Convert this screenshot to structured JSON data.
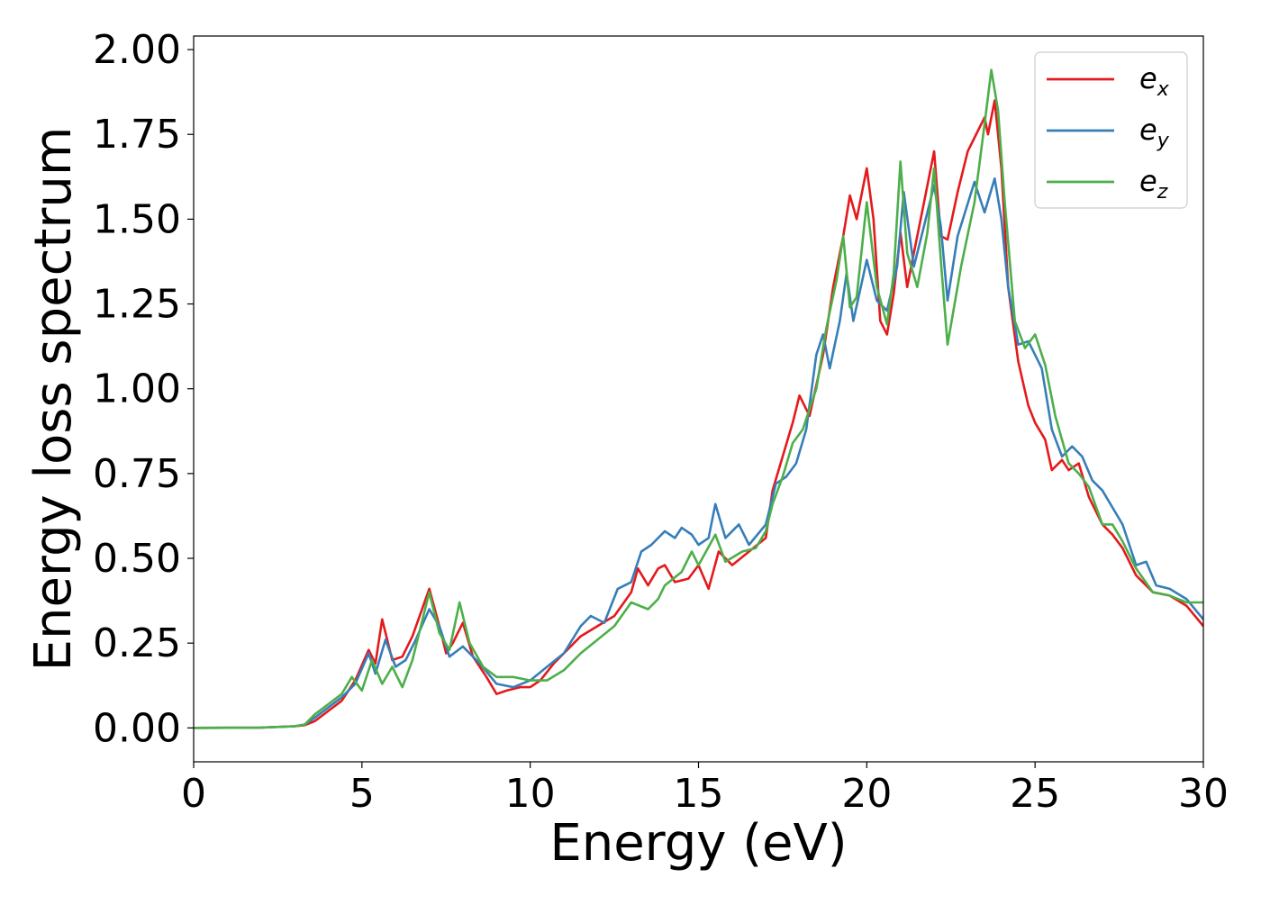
{
  "chart_data": {
    "type": "line",
    "xlabel": "Energy (eV)",
    "ylabel": "Energy loss spectrum",
    "xlim": [
      0,
      30
    ],
    "ylim": [
      -0.1,
      2.04
    ],
    "x_ticks": [
      0,
      5,
      10,
      15,
      20,
      25,
      30
    ],
    "x_tick_labels": [
      "0",
      "5",
      "10",
      "15",
      "20",
      "25",
      "30"
    ],
    "y_ticks": [
      0,
      0.25,
      0.5,
      0.75,
      1.0,
      1.25,
      1.5,
      1.75,
      2.0
    ],
    "y_tick_labels": [
      "0.00",
      "0.25",
      "0.50",
      "0.75",
      "1.00",
      "1.25",
      "1.50",
      "1.75",
      "2.00"
    ],
    "grid": false,
    "legend_position": "top-right",
    "series": [
      {
        "name": "e_x",
        "legend_base": "e",
        "legend_sub": "x",
        "color": "#e41a1c",
        "points": [
          [
            0,
            0
          ],
          [
            2,
            0.001
          ],
          [
            3,
            0.005
          ],
          [
            3.3,
            0.008
          ],
          [
            3.6,
            0.02
          ],
          [
            4,
            0.05
          ],
          [
            4.4,
            0.08
          ],
          [
            4.8,
            0.14
          ],
          [
            5.2,
            0.23
          ],
          [
            5.4,
            0.19
          ],
          [
            5.6,
            0.32
          ],
          [
            5.9,
            0.2
          ],
          [
            6.2,
            0.21
          ],
          [
            6.5,
            0.27
          ],
          [
            7,
            0.41
          ],
          [
            7.3,
            0.3
          ],
          [
            7.5,
            0.22
          ],
          [
            7.7,
            0.25
          ],
          [
            8,
            0.31
          ],
          [
            8.3,
            0.21
          ],
          [
            8.7,
            0.15
          ],
          [
            9,
            0.1
          ],
          [
            9.3,
            0.11
          ],
          [
            9.7,
            0.12
          ],
          [
            10,
            0.12
          ],
          [
            10.3,
            0.14
          ],
          [
            10.7,
            0.19
          ],
          [
            11,
            0.22
          ],
          [
            11.5,
            0.27
          ],
          [
            12,
            0.3
          ],
          [
            12.5,
            0.33
          ],
          [
            13,
            0.4
          ],
          [
            13.2,
            0.47
          ],
          [
            13.5,
            0.42
          ],
          [
            13.8,
            0.47
          ],
          [
            14,
            0.48
          ],
          [
            14.3,
            0.43
          ],
          [
            14.7,
            0.44
          ],
          [
            15,
            0.48
          ],
          [
            15.3,
            0.41
          ],
          [
            15.6,
            0.52
          ],
          [
            16,
            0.48
          ],
          [
            16.5,
            0.52
          ],
          [
            17,
            0.56
          ],
          [
            17.2,
            0.7
          ],
          [
            17.5,
            0.8
          ],
          [
            17.8,
            0.9
          ],
          [
            18,
            0.98
          ],
          [
            18.3,
            0.92
          ],
          [
            18.7,
            1.1
          ],
          [
            19,
            1.3
          ],
          [
            19.3,
            1.45
          ],
          [
            19.5,
            1.57
          ],
          [
            19.7,
            1.5
          ],
          [
            20,
            1.65
          ],
          [
            20.2,
            1.5
          ],
          [
            20.4,
            1.2
          ],
          [
            20.6,
            1.16
          ],
          [
            20.8,
            1.28
          ],
          [
            21,
            1.46
          ],
          [
            21.2,
            1.3
          ],
          [
            21.4,
            1.4
          ],
          [
            21.7,
            1.55
          ],
          [
            22,
            1.7
          ],
          [
            22.2,
            1.45
          ],
          [
            22.4,
            1.44
          ],
          [
            22.7,
            1.58
          ],
          [
            23,
            1.7
          ],
          [
            23.3,
            1.76
          ],
          [
            23.5,
            1.8
          ],
          [
            23.6,
            1.75
          ],
          [
            23.8,
            1.85
          ],
          [
            24,
            1.65
          ],
          [
            24.2,
            1.3
          ],
          [
            24.5,
            1.08
          ],
          [
            24.8,
            0.95
          ],
          [
            25,
            0.9
          ],
          [
            25.3,
            0.85
          ],
          [
            25.5,
            0.76
          ],
          [
            25.8,
            0.79
          ],
          [
            26,
            0.76
          ],
          [
            26.3,
            0.78
          ],
          [
            26.6,
            0.68
          ],
          [
            27,
            0.6
          ],
          [
            27.3,
            0.57
          ],
          [
            27.6,
            0.53
          ],
          [
            28,
            0.45
          ],
          [
            28.5,
            0.4
          ],
          [
            29,
            0.39
          ],
          [
            29.5,
            0.36
          ],
          [
            30,
            0.3
          ]
        ]
      },
      {
        "name": "e_y",
        "legend_base": "e",
        "legend_sub": "y",
        "color": "#377eb8",
        "points": [
          [
            0,
            0
          ],
          [
            2,
            0.001
          ],
          [
            3,
            0.005
          ],
          [
            3.3,
            0.01
          ],
          [
            3.6,
            0.03
          ],
          [
            4,
            0.06
          ],
          [
            4.4,
            0.09
          ],
          [
            4.8,
            0.13
          ],
          [
            5.2,
            0.22
          ],
          [
            5.4,
            0.16
          ],
          [
            5.7,
            0.26
          ],
          [
            6,
            0.18
          ],
          [
            6.3,
            0.2
          ],
          [
            6.6,
            0.26
          ],
          [
            7,
            0.35
          ],
          [
            7.3,
            0.3
          ],
          [
            7.6,
            0.21
          ],
          [
            8,
            0.24
          ],
          [
            8.5,
            0.19
          ],
          [
            9,
            0.13
          ],
          [
            9.5,
            0.12
          ],
          [
            10,
            0.14
          ],
          [
            10.5,
            0.18
          ],
          [
            11,
            0.22
          ],
          [
            11.5,
            0.3
          ],
          [
            11.8,
            0.33
          ],
          [
            12.2,
            0.31
          ],
          [
            12.6,
            0.41
          ],
          [
            13,
            0.43
          ],
          [
            13.3,
            0.52
          ],
          [
            13.6,
            0.54
          ],
          [
            14,
            0.58
          ],
          [
            14.3,
            0.56
          ],
          [
            14.5,
            0.59
          ],
          [
            14.8,
            0.57
          ],
          [
            15,
            0.54
          ],
          [
            15.3,
            0.56
          ],
          [
            15.5,
            0.66
          ],
          [
            15.8,
            0.56
          ],
          [
            16.2,
            0.6
          ],
          [
            16.5,
            0.54
          ],
          [
            17,
            0.6
          ],
          [
            17.3,
            0.72
          ],
          [
            17.6,
            0.74
          ],
          [
            17.9,
            0.78
          ],
          [
            18.2,
            0.88
          ],
          [
            18.5,
            1.1
          ],
          [
            18.7,
            1.16
          ],
          [
            18.9,
            1.06
          ],
          [
            19.2,
            1.2
          ],
          [
            19.4,
            1.34
          ],
          [
            19.6,
            1.2
          ],
          [
            20,
            1.38
          ],
          [
            20.3,
            1.26
          ],
          [
            20.6,
            1.23
          ],
          [
            20.9,
            1.36
          ],
          [
            21.1,
            1.58
          ],
          [
            21.4,
            1.36
          ],
          [
            21.7,
            1.48
          ],
          [
            22,
            1.6
          ],
          [
            22.2,
            1.48
          ],
          [
            22.4,
            1.26
          ],
          [
            22.7,
            1.45
          ],
          [
            23.2,
            1.61
          ],
          [
            23.5,
            1.52
          ],
          [
            23.8,
            1.62
          ],
          [
            24,
            1.5
          ],
          [
            24.2,
            1.3
          ],
          [
            24.5,
            1.13
          ],
          [
            24.8,
            1.14
          ],
          [
            25.2,
            1.06
          ],
          [
            25.5,
            0.88
          ],
          [
            25.8,
            0.8
          ],
          [
            26.1,
            0.83
          ],
          [
            26.4,
            0.8
          ],
          [
            26.7,
            0.73
          ],
          [
            27,
            0.7
          ],
          [
            27.3,
            0.65
          ],
          [
            27.6,
            0.6
          ],
          [
            28,
            0.48
          ],
          [
            28.3,
            0.49
          ],
          [
            28.6,
            0.42
          ],
          [
            29,
            0.41
          ],
          [
            29.5,
            0.38
          ],
          [
            30,
            0.32
          ]
        ]
      },
      {
        "name": "e_z",
        "legend_base": "e",
        "legend_sub": "z",
        "color": "#4daf4a",
        "points": [
          [
            0,
            0
          ],
          [
            2,
            0.001
          ],
          [
            3,
            0.005
          ],
          [
            3.3,
            0.01
          ],
          [
            3.6,
            0.04
          ],
          [
            4,
            0.07
          ],
          [
            4.4,
            0.1
          ],
          [
            4.7,
            0.15
          ],
          [
            5,
            0.11
          ],
          [
            5.3,
            0.2
          ],
          [
            5.6,
            0.13
          ],
          [
            5.9,
            0.18
          ],
          [
            6.2,
            0.12
          ],
          [
            6.5,
            0.2
          ],
          [
            7,
            0.4
          ],
          [
            7.3,
            0.28
          ],
          [
            7.6,
            0.23
          ],
          [
            7.9,
            0.37
          ],
          [
            8.2,
            0.25
          ],
          [
            8.6,
            0.18
          ],
          [
            9,
            0.15
          ],
          [
            9.5,
            0.15
          ],
          [
            10,
            0.14
          ],
          [
            10.5,
            0.14
          ],
          [
            11,
            0.17
          ],
          [
            11.5,
            0.22
          ],
          [
            12,
            0.26
          ],
          [
            12.5,
            0.3
          ],
          [
            13,
            0.37
          ],
          [
            13.5,
            0.35
          ],
          [
            13.8,
            0.38
          ],
          [
            14,
            0.42
          ],
          [
            14.5,
            0.46
          ],
          [
            14.8,
            0.52
          ],
          [
            15,
            0.48
          ],
          [
            15.5,
            0.57
          ],
          [
            15.8,
            0.49
          ],
          [
            16.3,
            0.52
          ],
          [
            16.7,
            0.53
          ],
          [
            17,
            0.58
          ],
          [
            17.2,
            0.66
          ],
          [
            17.5,
            0.74
          ],
          [
            17.8,
            0.84
          ],
          [
            18.1,
            0.88
          ],
          [
            18.5,
            1.0
          ],
          [
            18.8,
            1.18
          ],
          [
            19.1,
            1.32
          ],
          [
            19.3,
            1.45
          ],
          [
            19.5,
            1.24
          ],
          [
            19.7,
            1.27
          ],
          [
            20,
            1.55
          ],
          [
            20.3,
            1.3
          ],
          [
            20.6,
            1.19
          ],
          [
            20.8,
            1.34
          ],
          [
            21,
            1.67
          ],
          [
            21.2,
            1.4
          ],
          [
            21.5,
            1.3
          ],
          [
            21.8,
            1.46
          ],
          [
            22,
            1.65
          ],
          [
            22.2,
            1.38
          ],
          [
            22.4,
            1.13
          ],
          [
            22.8,
            1.36
          ],
          [
            23.2,
            1.55
          ],
          [
            23.5,
            1.78
          ],
          [
            23.7,
            1.94
          ],
          [
            23.9,
            1.82
          ],
          [
            24.1,
            1.55
          ],
          [
            24.4,
            1.2
          ],
          [
            24.7,
            1.12
          ],
          [
            25,
            1.16
          ],
          [
            25.3,
            1.07
          ],
          [
            25.6,
            0.92
          ],
          [
            26,
            0.78
          ],
          [
            26.3,
            0.75
          ],
          [
            26.6,
            0.71
          ],
          [
            27,
            0.6
          ],
          [
            27.3,
            0.6
          ],
          [
            27.6,
            0.55
          ],
          [
            28,
            0.47
          ],
          [
            28.5,
            0.4
          ],
          [
            29,
            0.39
          ],
          [
            29.5,
            0.37
          ],
          [
            30,
            0.37
          ]
        ]
      }
    ]
  }
}
